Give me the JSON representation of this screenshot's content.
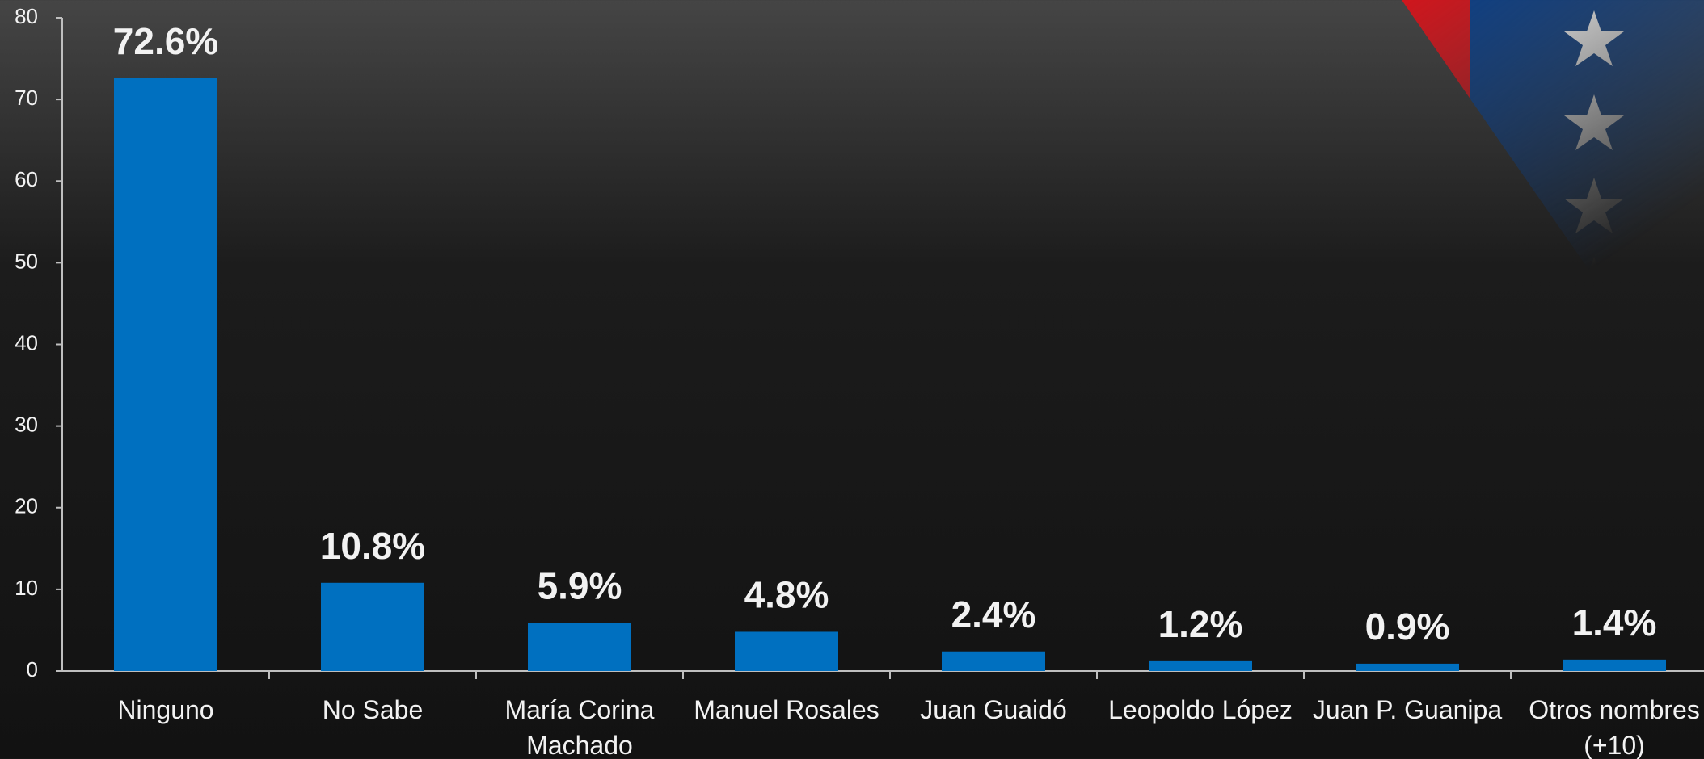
{
  "chart_data": {
    "type": "bar",
    "categories": [
      "Ninguno",
      "No Sabe",
      "María Corina Machado",
      "Manuel Rosales",
      "Juan Guaidó",
      "Leopoldo López",
      "Juan P. Guanipa",
      "Otros nombres (+10)"
    ],
    "values": [
      72.6,
      10.8,
      5.9,
      4.8,
      2.4,
      1.2,
      0.9,
      1.4
    ],
    "value_labels": [
      "72.6%",
      "10.8%",
      "5.9%",
      "4.8%",
      "2.4%",
      "1.2%",
      "0.9%",
      "1.4%"
    ],
    "color": "#0070c0",
    "ylim": [
      0,
      80
    ],
    "yticks": [
      0,
      10,
      20,
      30,
      40,
      50,
      60,
      70,
      80
    ],
    "grid": false
  }
}
